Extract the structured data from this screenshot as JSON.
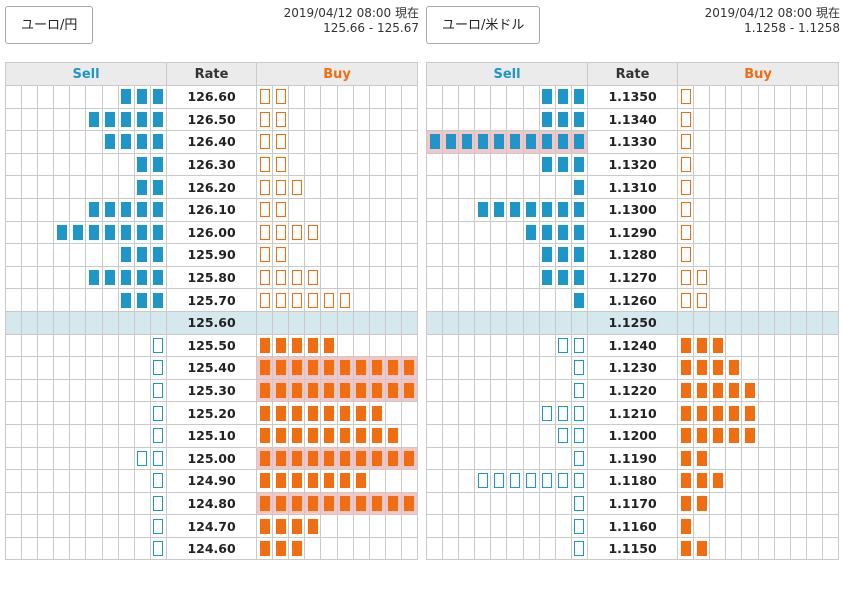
{
  "panels": [
    {
      "id": "eur-jpy",
      "pair_label": "ユーロ/円",
      "timestamp": "2019/04/12 08:00 現在",
      "range": "125.66 - 125.67",
      "headers": {
        "sell": "Sell",
        "rate": "Rate",
        "buy": "Buy"
      },
      "colors": {
        "sell": "#1e96c8",
        "buy": "#f26d0f",
        "highlight": "#f4c6c6",
        "mid_row": "#d4e8ee"
      },
      "rows": [
        {
          "rate": "126.60",
          "sell": 3,
          "buy": 2,
          "style": "outline"
        },
        {
          "rate": "126.50",
          "sell": 5,
          "buy": 2,
          "style": "outline"
        },
        {
          "rate": "126.40",
          "sell": 4,
          "buy": 2,
          "style": "outline"
        },
        {
          "rate": "126.30",
          "sell": 2,
          "buy": 2,
          "style": "outline"
        },
        {
          "rate": "126.20",
          "sell": 2,
          "buy": 3,
          "style": "outline"
        },
        {
          "rate": "126.10",
          "sell": 5,
          "buy": 2,
          "style": "outline"
        },
        {
          "rate": "126.00",
          "sell": 7,
          "buy": 4,
          "style": "outline"
        },
        {
          "rate": "125.90",
          "sell": 3,
          "buy": 2,
          "style": "outline"
        },
        {
          "rate": "125.80",
          "sell": 5,
          "buy": 4,
          "style": "outline"
        },
        {
          "rate": "125.70",
          "sell": 3,
          "buy": 6,
          "style": "outline"
        },
        {
          "rate": "125.60",
          "sell": 0,
          "buy": 0,
          "mid": true
        },
        {
          "rate": "125.50",
          "sell": 1,
          "buy": 5,
          "style": "fill"
        },
        {
          "rate": "125.40",
          "sell": 1,
          "buy": 10,
          "style": "fill",
          "highlight": "buy"
        },
        {
          "rate": "125.30",
          "sell": 1,
          "buy": 10,
          "style": "fill",
          "highlight": "buy"
        },
        {
          "rate": "125.20",
          "sell": 1,
          "buy": 8,
          "style": "fill"
        },
        {
          "rate": "125.10",
          "sell": 1,
          "buy": 9,
          "style": "fill"
        },
        {
          "rate": "125.00",
          "sell": 2,
          "buy": 10,
          "style": "fill",
          "highlight": "buy"
        },
        {
          "rate": "124.90",
          "sell": 1,
          "buy": 7,
          "style": "fill"
        },
        {
          "rate": "124.80",
          "sell": 1,
          "buy": 10,
          "style": "fill",
          "highlight": "buy"
        },
        {
          "rate": "124.70",
          "sell": 1,
          "buy": 4,
          "style": "fill"
        },
        {
          "rate": "124.60",
          "sell": 1,
          "buy": 3,
          "style": "fill"
        }
      ]
    },
    {
      "id": "eur-usd",
      "pair_label": "ユーロ/米ドル",
      "timestamp": "2019/04/12 08:00 現在",
      "range": "1.1258 - 1.1258",
      "headers": {
        "sell": "Sell",
        "rate": "Rate",
        "buy": "Buy"
      },
      "colors": {
        "sell": "#1e96c8",
        "buy": "#f26d0f",
        "highlight": "#f4c6c6",
        "mid_row": "#d4e8ee"
      },
      "rows": [
        {
          "rate": "1.1350",
          "sell": 3,
          "buy": 1,
          "style": "outline"
        },
        {
          "rate": "1.1340",
          "sell": 3,
          "buy": 1,
          "style": "outline"
        },
        {
          "rate": "1.1330",
          "sell": 10,
          "buy": 1,
          "style": "outline",
          "highlight": "sell"
        },
        {
          "rate": "1.1320",
          "sell": 3,
          "buy": 1,
          "style": "outline"
        },
        {
          "rate": "1.1310",
          "sell": 1,
          "buy": 1,
          "style": "outline"
        },
        {
          "rate": "1.1300",
          "sell": 7,
          "buy": 1,
          "style": "outline"
        },
        {
          "rate": "1.1290",
          "sell": 4,
          "buy": 1,
          "style": "outline"
        },
        {
          "rate": "1.1280",
          "sell": 3,
          "buy": 1,
          "style": "outline"
        },
        {
          "rate": "1.1270",
          "sell": 3,
          "buy": 2,
          "style": "outline"
        },
        {
          "rate": "1.1260",
          "sell": 1,
          "buy": 2,
          "style": "outline"
        },
        {
          "rate": "1.1250",
          "sell": 0,
          "buy": 0,
          "mid": true
        },
        {
          "rate": "1.1240",
          "sell": 2,
          "buy": 3,
          "style": "fill"
        },
        {
          "rate": "1.1230",
          "sell": 1,
          "buy": 4,
          "style": "fill"
        },
        {
          "rate": "1.1220",
          "sell": 1,
          "buy": 5,
          "style": "fill"
        },
        {
          "rate": "1.1210",
          "sell": 3,
          "buy": 5,
          "style": "fill"
        },
        {
          "rate": "1.1200",
          "sell": 2,
          "buy": 5,
          "style": "fill"
        },
        {
          "rate": "1.1190",
          "sell": 1,
          "buy": 2,
          "style": "fill"
        },
        {
          "rate": "1.1180",
          "sell": 7,
          "buy": 3,
          "style": "fill"
        },
        {
          "rate": "1.1170",
          "sell": 1,
          "buy": 2,
          "style": "fill"
        },
        {
          "rate": "1.1160",
          "sell": 1,
          "buy": 1,
          "style": "fill"
        },
        {
          "rate": "1.1150",
          "sell": 1,
          "buy": 2,
          "style": "fill"
        }
      ]
    }
  ]
}
